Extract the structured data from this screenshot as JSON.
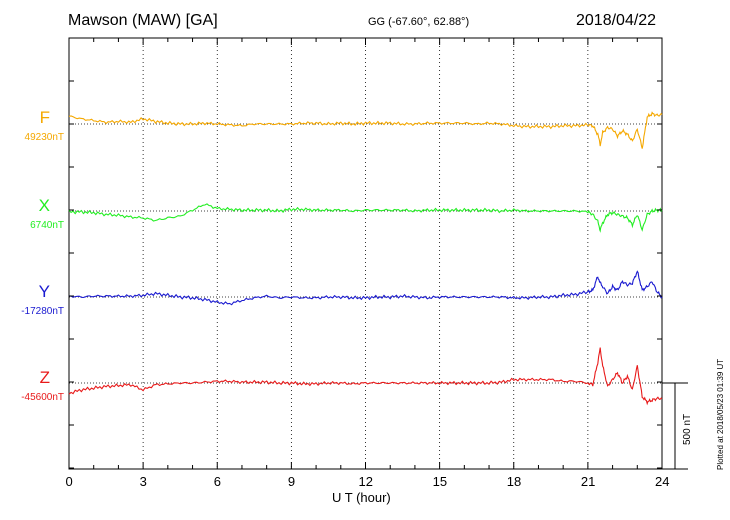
{
  "header": {
    "station": "Mawson (MAW)  [GA]",
    "coords": "GG (-67.60°,  62.88°)",
    "date": "2018/04/22"
  },
  "footer": {
    "plotted_note": "Plotted at 2018/05/23 01:39 UT",
    "scale_label": "500 nT"
  },
  "chart_data": {
    "type": "line",
    "title": "Mawson (MAW)  [GA]",
    "xlabel": "U T (hour)",
    "ylabel": "",
    "xlim": [
      0,
      24
    ],
    "xticks": [
      0,
      3,
      6,
      9,
      12,
      15,
      18,
      21,
      24
    ],
    "grid": true,
    "scale_bar_nT": 500,
    "series": [
      {
        "name": "F",
        "baseline_label": "49230nT",
        "baseline_nT": 49230,
        "color": "#f5a800",
        "x": [
          0,
          0.5,
          1,
          1.5,
          2,
          2.5,
          3,
          3.5,
          4,
          4.5,
          5,
          5.5,
          6,
          6.5,
          7,
          7.5,
          8,
          8.5,
          9,
          9.5,
          10,
          10.5,
          11,
          11.5,
          12,
          12.5,
          13,
          13.5,
          14,
          14.5,
          15,
          15.5,
          16,
          16.5,
          17,
          17.5,
          18,
          18.5,
          19,
          19.5,
          20,
          20.5,
          21,
          21.2,
          21.4,
          21.5,
          21.6,
          21.8,
          22,
          22.2,
          22.4,
          22.6,
          22.8,
          23,
          23.2,
          23.4,
          23.6,
          23.8,
          24
        ],
        "values": [
          45,
          30,
          20,
          10,
          15,
          10,
          30,
          15,
          5,
          0,
          0,
          5,
          0,
          -5,
          -10,
          0,
          0,
          0,
          0,
          5,
          5,
          0,
          5,
          0,
          5,
          5,
          5,
          0,
          0,
          5,
          5,
          5,
          5,
          0,
          5,
          0,
          -10,
          -15,
          -15,
          -15,
          -10,
          -10,
          -5,
          -10,
          -60,
          -120,
          -50,
          -20,
          -30,
          -70,
          -40,
          -60,
          -100,
          -30,
          -140,
          40,
          60,
          50,
          55
        ]
      },
      {
        "name": "X",
        "baseline_label": "6740nT",
        "baseline_nT": 6740,
        "color": "#22ee22",
        "x": [
          0,
          0.5,
          1,
          1.5,
          2,
          2.5,
          3,
          3.5,
          4,
          4.5,
          5,
          5.5,
          6,
          6.5,
          7,
          7.5,
          8,
          8.5,
          9,
          9.5,
          10,
          10.5,
          11,
          11.5,
          12,
          12.5,
          13,
          13.5,
          14,
          14.5,
          15,
          15.5,
          16,
          16.5,
          17,
          17.5,
          18,
          18.5,
          19,
          19.5,
          20,
          20.5,
          21,
          21.2,
          21.4,
          21.5,
          21.6,
          21.8,
          22,
          22.2,
          22.4,
          22.6,
          22.8,
          23,
          23.2,
          23.4,
          23.6,
          23.8,
          24
        ],
        "values": [
          -5,
          -5,
          -10,
          -20,
          -25,
          -35,
          -40,
          -55,
          -40,
          -30,
          5,
          40,
          15,
          10,
          5,
          5,
          5,
          0,
          10,
          10,
          5,
          5,
          5,
          0,
          5,
          5,
          5,
          5,
          0,
          5,
          5,
          5,
          5,
          5,
          5,
          0,
          5,
          0,
          0,
          0,
          0,
          0,
          -5,
          -20,
          -60,
          -110,
          -70,
          -20,
          -10,
          -20,
          -30,
          -40,
          -80,
          -20,
          -110,
          -20,
          0,
          5,
          5
        ]
      },
      {
        "name": "Y",
        "baseline_label": "-17280nT",
        "baseline_nT": -17280,
        "color": "#1a1ad0",
        "x": [
          0,
          0.5,
          1,
          1.5,
          2,
          2.5,
          3,
          3.5,
          4,
          4.5,
          5,
          5.5,
          6,
          6.5,
          7,
          7.5,
          8,
          8.5,
          9,
          9.5,
          10,
          10.5,
          11,
          11.5,
          12,
          12.5,
          13,
          13.5,
          14,
          14.5,
          15,
          15.5,
          16,
          16.5,
          17,
          17.5,
          18,
          18.5,
          19,
          19.5,
          20,
          20.5,
          21,
          21.2,
          21.4,
          21.5,
          21.6,
          21.8,
          22,
          22.2,
          22.4,
          22.6,
          22.8,
          23,
          23.2,
          23.4,
          23.6,
          23.8,
          24
        ],
        "values": [
          5,
          0,
          5,
          5,
          5,
          5,
          10,
          20,
          10,
          0,
          -5,
          -15,
          -30,
          -40,
          -20,
          -5,
          5,
          -5,
          0,
          -5,
          -5,
          0,
          0,
          -5,
          -5,
          0,
          0,
          5,
          0,
          -5,
          0,
          0,
          0,
          0,
          0,
          0,
          -5,
          -5,
          0,
          0,
          10,
          15,
          30,
          40,
          120,
          80,
          60,
          20,
          60,
          40,
          90,
          70,
          80,
          150,
          40,
          60,
          90,
          30,
          0
        ]
      },
      {
        "name": "Z",
        "baseline_label": "-45600nT",
        "baseline_nT": -45600,
        "color": "#e81a1a",
        "x": [
          0,
          0.5,
          1,
          1.5,
          2,
          2.5,
          3,
          3.5,
          4,
          4.5,
          5,
          5.5,
          6,
          6.5,
          7,
          7.5,
          8,
          8.5,
          9,
          9.5,
          10,
          10.5,
          11,
          11.5,
          12,
          12.5,
          13,
          13.5,
          14,
          14.5,
          15,
          15.5,
          16,
          16.5,
          17,
          17.5,
          18,
          18.5,
          19,
          19.5,
          20,
          20.5,
          21,
          21.2,
          21.4,
          21.5,
          21.6,
          21.8,
          22,
          22.2,
          22.4,
          22.6,
          22.8,
          23,
          23.2,
          23.4,
          23.6,
          23.8,
          24
        ],
        "values": [
          -60,
          -40,
          -30,
          -20,
          -15,
          -10,
          -40,
          -10,
          -5,
          0,
          0,
          5,
          10,
          10,
          5,
          5,
          5,
          0,
          0,
          -5,
          -5,
          0,
          0,
          -5,
          0,
          0,
          0,
          0,
          0,
          0,
          0,
          0,
          0,
          0,
          0,
          5,
          20,
          20,
          20,
          20,
          10,
          10,
          0,
          -10,
          120,
          200,
          100,
          -20,
          20,
          60,
          0,
          40,
          -40,
          100,
          -80,
          -110,
          -100,
          -90,
          -90
        ]
      }
    ]
  }
}
